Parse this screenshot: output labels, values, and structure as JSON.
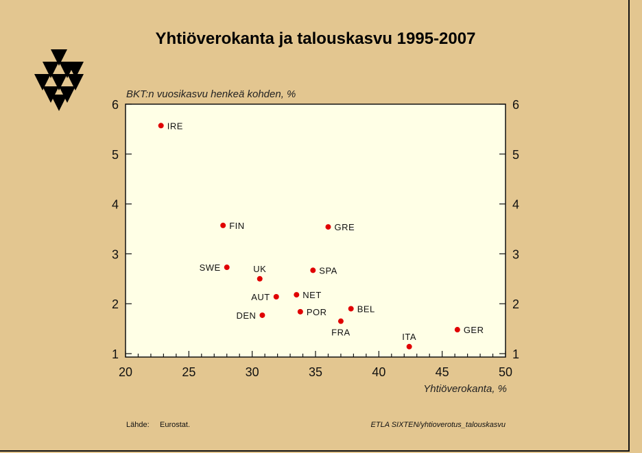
{
  "chart_data": {
    "type": "scatter",
    "title": "Yhtiöverokanta ja talouskasvu 1995-2007",
    "ylabel": "BKT:n vuosikasvu henkeä kohden, %",
    "xlabel": "Yhtiöverokanta, %",
    "xlim": [
      20,
      50
    ],
    "ylim": [
      1,
      6
    ],
    "x_ticks": [
      "20",
      "25",
      "30",
      "35",
      "40",
      "45",
      "50"
    ],
    "y_ticks": [
      "1",
      "2",
      "3",
      "4",
      "5",
      "6"
    ],
    "points": [
      {
        "label": "IRE",
        "x": 22.8,
        "y": 5.57
      },
      {
        "label": "FIN",
        "x": 27.7,
        "y": 3.57
      },
      {
        "label": "GRE",
        "x": 36.0,
        "y": 3.54
      },
      {
        "label": "SWE",
        "x": 28.0,
        "y": 2.73
      },
      {
        "label": "UK",
        "x": 30.6,
        "y": 2.5
      },
      {
        "label": "SPA",
        "x": 34.8,
        "y": 2.67
      },
      {
        "label": "AUT",
        "x": 31.9,
        "y": 2.14
      },
      {
        "label": "NET",
        "x": 33.5,
        "y": 2.18
      },
      {
        "label": "DEN",
        "x": 30.8,
        "y": 1.77
      },
      {
        "label": "POR",
        "x": 33.8,
        "y": 1.84
      },
      {
        "label": "BEL",
        "x": 37.8,
        "y": 1.9
      },
      {
        "label": "FRA",
        "x": 37.0,
        "y": 1.65
      },
      {
        "label": "ITA",
        "x": 42.4,
        "y": 1.14
      },
      {
        "label": "GER",
        "x": 46.2,
        "y": 1.48
      }
    ],
    "grid": false,
    "colors": {
      "background": "#e3c690",
      "plot_area": "#ffffe6",
      "point": "#e00000"
    }
  },
  "footer": {
    "source_label": "Lähde:",
    "source_value": "Eurostat.",
    "credit": "ETLA  SIXTEN/yhtioverotus_talouskasvu"
  }
}
